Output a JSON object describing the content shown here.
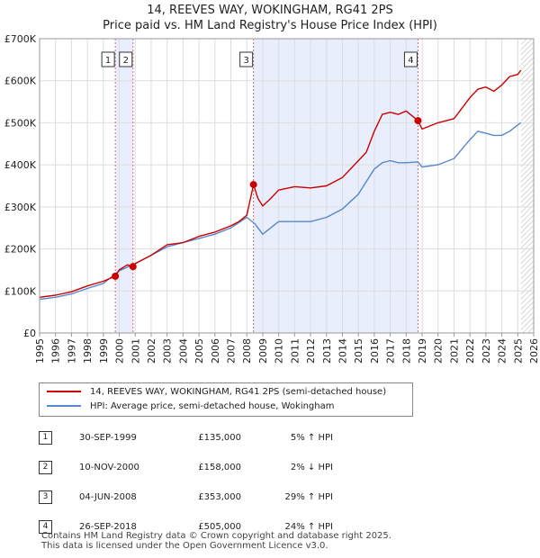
{
  "title": "14, REEVES WAY, WOKINGHAM, RG41 2PS",
  "subtitle": "Price paid vs. HM Land Registry's House Price Index (HPI)",
  "legend": {
    "property": "14, REEVES WAY, WOKINGHAM, RG41 2PS (semi-detached house)",
    "hpi": "HPI: Average price, semi-detached house, Wokingham"
  },
  "colors": {
    "property": "#cc0000",
    "hpi": "#5588cc",
    "shade": "#e8eefb",
    "grid": "#dddddd"
  },
  "chart_data": {
    "type": "line",
    "title": "14, REEVES WAY, WOKINGHAM, RG41 2PS",
    "xlim": [
      1995,
      2026
    ],
    "ylim": [
      0,
      700000
    ],
    "y_ticks": [
      {
        "v": 0,
        "label": "£0"
      },
      {
        "v": 100000,
        "label": "£100K"
      },
      {
        "v": 200000,
        "label": "£200K"
      },
      {
        "v": 300000,
        "label": "£300K"
      },
      {
        "v": 400000,
        "label": "£400K"
      },
      {
        "v": 500000,
        "label": "£500K"
      },
      {
        "v": 600000,
        "label": "£600K"
      },
      {
        "v": 700000,
        "label": "£700K"
      }
    ],
    "x_ticks": [
      "1995",
      "1996",
      "1997",
      "1998",
      "1999",
      "2000",
      "2001",
      "2002",
      "2003",
      "2004",
      "2005",
      "2006",
      "2007",
      "2008",
      "2009",
      "2010",
      "2011",
      "2012",
      "2013",
      "2014",
      "2015",
      "2016",
      "2017",
      "2018",
      "2019",
      "2020",
      "2021",
      "2022",
      "2023",
      "2024",
      "2025",
      "2026"
    ],
    "shaded_ranges": [
      [
        1999.75,
        2000.86
      ],
      [
        2008.42,
        2018.74
      ]
    ],
    "hatch_from": 2025.2,
    "series": [
      {
        "name": "14, REEVES WAY, WOKINGHAM, RG41 2PS (semi-detached house)",
        "x": [
          1995,
          1996,
          1997,
          1998,
          1999,
          1999.75,
          2000,
          2000.5,
          2000.86,
          2001,
          2002,
          2003,
          2004,
          2005,
          2006,
          2007,
          2007.5,
          2008,
          2008.42,
          2008.7,
          2009,
          2009.5,
          2010,
          2011,
          2012,
          2013,
          2014,
          2015,
          2015.5,
          2016,
          2016.5,
          2017,
          2017.5,
          2018,
          2018.74,
          2019,
          2020,
          2021,
          2022,
          2022.5,
          2023,
          2023.5,
          2024,
          2024.5,
          2025,
          2025.2
        ],
        "y": [
          85000,
          90000,
          98000,
          112000,
          123000,
          135000,
          150000,
          162000,
          158000,
          165000,
          185000,
          210000,
          215000,
          230000,
          240000,
          255000,
          265000,
          280000,
          353000,
          320000,
          302000,
          320000,
          340000,
          348000,
          345000,
          350000,
          370000,
          410000,
          430000,
          480000,
          520000,
          525000,
          520000,
          528000,
          505000,
          485000,
          500000,
          510000,
          560000,
          580000,
          585000,
          575000,
          590000,
          610000,
          615000,
          625000
        ]
      },
      {
        "name": "HPI: Average price, semi-detached house, Wokingham",
        "x": [
          1995,
          1996,
          1997,
          1998,
          1999,
          2000,
          2001,
          2002,
          2003,
          2004,
          2005,
          2006,
          2007,
          2008,
          2008.5,
          2009,
          2009.5,
          2010,
          2011,
          2012,
          2013,
          2014,
          2015,
          2015.5,
          2016,
          2016.5,
          2017,
          2017.5,
          2018,
          2018.74,
          2019,
          2020,
          2021,
          2022,
          2022.5,
          2023,
          2023.5,
          2024,
          2024.5,
          2025,
          2025.2
        ],
        "y": [
          80000,
          85000,
          93000,
          106000,
          118000,
          148000,
          165000,
          185000,
          205000,
          215000,
          225000,
          235000,
          250000,
          275000,
          260000,
          235000,
          250000,
          265000,
          265000,
          265000,
          275000,
          295000,
          330000,
          360000,
          390000,
          405000,
          410000,
          405000,
          405000,
          407000,
          395000,
          400000,
          415000,
          460000,
          480000,
          475000,
          470000,
          470000,
          480000,
          495000,
          500000
        ]
      }
    ],
    "sales": [
      {
        "n": "1",
        "date": "30-SEP-1999",
        "price": "£135,000",
        "delta": "5% ↑ HPI",
        "x": 1999.75,
        "y": 135000
      },
      {
        "n": "2",
        "date": "10-NOV-2000",
        "price": "£158,000",
        "delta": "2% ↓ HPI",
        "x": 2000.86,
        "y": 158000
      },
      {
        "n": "3",
        "date": "04-JUN-2008",
        "price": "£353,000",
        "delta": "29% ↑ HPI",
        "x": 2008.42,
        "y": 353000
      },
      {
        "n": "4",
        "date": "26-SEP-2018",
        "price": "£505,000",
        "delta": "24% ↑ HPI",
        "x": 2018.74,
        "y": 505000
      }
    ]
  },
  "footer": {
    "line1": "Contains HM Land Registry data © Crown copyright and database right 2025.",
    "line2": "This data is licensed under the Open Government Licence v3.0."
  }
}
